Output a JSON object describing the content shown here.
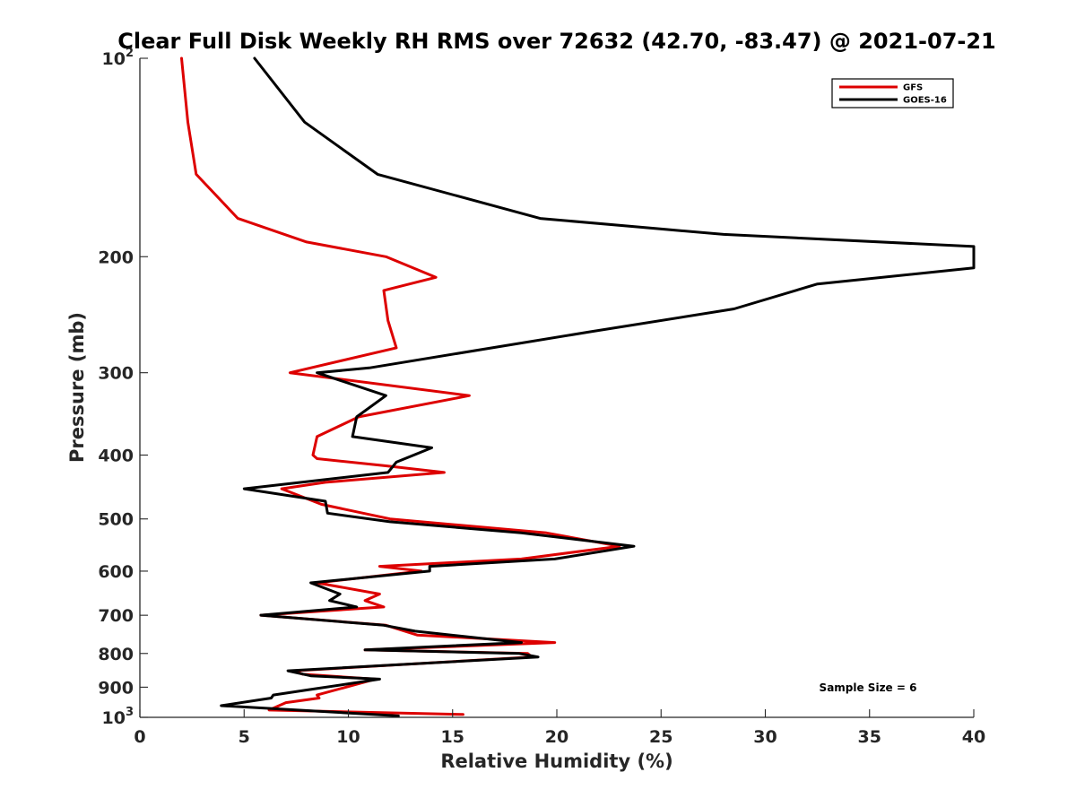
{
  "chart_data": {
    "type": "line",
    "title": "Clear Full Disk Weekly RH RMS over 72632 (42.70, -83.47) @ 2021-07-21",
    "xlabel": "Relative Humidity (%)",
    "ylabel": "Pressure (mb)",
    "xlim": [
      0,
      40
    ],
    "ylim": [
      100,
      1000
    ],
    "y_scale": "log",
    "y_reversed": true,
    "x_ticks": [
      "0",
      "5",
      "10",
      "15",
      "20",
      "25",
      "30",
      "35",
      "40"
    ],
    "y_ticks": [
      {
        "value": 100,
        "base": "10",
        "exp": "2"
      },
      {
        "value": 200,
        "label": "200"
      },
      {
        "value": 300,
        "label": "300"
      },
      {
        "value": 400,
        "label": "400"
      },
      {
        "value": 500,
        "label": "500"
      },
      {
        "value": 600,
        "label": "600"
      },
      {
        "value": 700,
        "label": "700"
      },
      {
        "value": 800,
        "label": "800"
      },
      {
        "value": 900,
        "label": "900"
      },
      {
        "value": 1000,
        "base": "10",
        "exp": "3"
      }
    ],
    "grid": false,
    "legend_position": "top-right",
    "annotation": "Sample Size = 6",
    "series": [
      {
        "name": "GFS",
        "color": "#dd0000",
        "points": [
          [
            2.0,
            100
          ],
          [
            2.3,
            125
          ],
          [
            2.7,
            150
          ],
          [
            4.7,
            175
          ],
          [
            8.0,
            190
          ],
          [
            11.8,
            200
          ],
          [
            14.2,
            215
          ],
          [
            11.7,
            225
          ],
          [
            11.9,
            250
          ],
          [
            12.3,
            275
          ],
          [
            7.2,
            300
          ],
          [
            15.8,
            325
          ],
          [
            10.5,
            350
          ],
          [
            8.5,
            375
          ],
          [
            8.3,
            400
          ],
          [
            8.5,
            405
          ],
          [
            11.7,
            415
          ],
          [
            14.6,
            425
          ],
          [
            8.9,
            440
          ],
          [
            6.8,
            450
          ],
          [
            8.7,
            475
          ],
          [
            12.0,
            500
          ],
          [
            19.5,
            525
          ],
          [
            23.0,
            550
          ],
          [
            18.3,
            575
          ],
          [
            11.5,
            590
          ],
          [
            13.5,
            600
          ],
          [
            8.5,
            625
          ],
          [
            11.5,
            650
          ],
          [
            10.8,
            665
          ],
          [
            11.7,
            680
          ],
          [
            5.8,
            700
          ],
          [
            11.8,
            725
          ],
          [
            13.3,
            750
          ],
          [
            19.9,
            770
          ],
          [
            10.8,
            790
          ],
          [
            18.6,
            800
          ],
          [
            18.8,
            810
          ],
          [
            7.4,
            850
          ],
          [
            7.8,
            860
          ],
          [
            11.3,
            875
          ],
          [
            8.5,
            925
          ],
          [
            8.6,
            935
          ],
          [
            7.0,
            950
          ],
          [
            6.2,
            975
          ],
          [
            15.5,
            990
          ]
        ]
      },
      {
        "name": "GOES-16",
        "color": "#000000",
        "points": [
          [
            5.5,
            100
          ],
          [
            7.9,
            125
          ],
          [
            11.4,
            150
          ],
          [
            19.2,
            175
          ],
          [
            28.0,
            185
          ],
          [
            40.0,
            193
          ],
          [
            40.0,
            208
          ],
          [
            32.5,
            220
          ],
          [
            28.5,
            240
          ],
          [
            21.6,
            260
          ],
          [
            11.0,
            295
          ],
          [
            8.5,
            300
          ],
          [
            11.8,
            325
          ],
          [
            10.4,
            350
          ],
          [
            10.2,
            375
          ],
          [
            14.0,
            390
          ],
          [
            12.3,
            410
          ],
          [
            11.9,
            425
          ],
          [
            5.0,
            450
          ],
          [
            8.9,
            470
          ],
          [
            9.0,
            490
          ],
          [
            12.0,
            505
          ],
          [
            18.3,
            525
          ],
          [
            23.7,
            550
          ],
          [
            19.9,
            575
          ],
          [
            13.9,
            590
          ],
          [
            13.9,
            600
          ],
          [
            8.2,
            625
          ],
          [
            9.6,
            650
          ],
          [
            9.1,
            665
          ],
          [
            10.4,
            680
          ],
          [
            5.8,
            700
          ],
          [
            11.7,
            725
          ],
          [
            13.2,
            740
          ],
          [
            18.3,
            770
          ],
          [
            10.8,
            790
          ],
          [
            18.2,
            800
          ],
          [
            19.1,
            810
          ],
          [
            7.1,
            850
          ],
          [
            8.2,
            865
          ],
          [
            11.5,
            875
          ],
          [
            7.9,
            910
          ],
          [
            6.4,
            925
          ],
          [
            6.3,
            935
          ],
          [
            3.9,
            960
          ],
          [
            12.4,
            995
          ]
        ]
      }
    ]
  }
}
